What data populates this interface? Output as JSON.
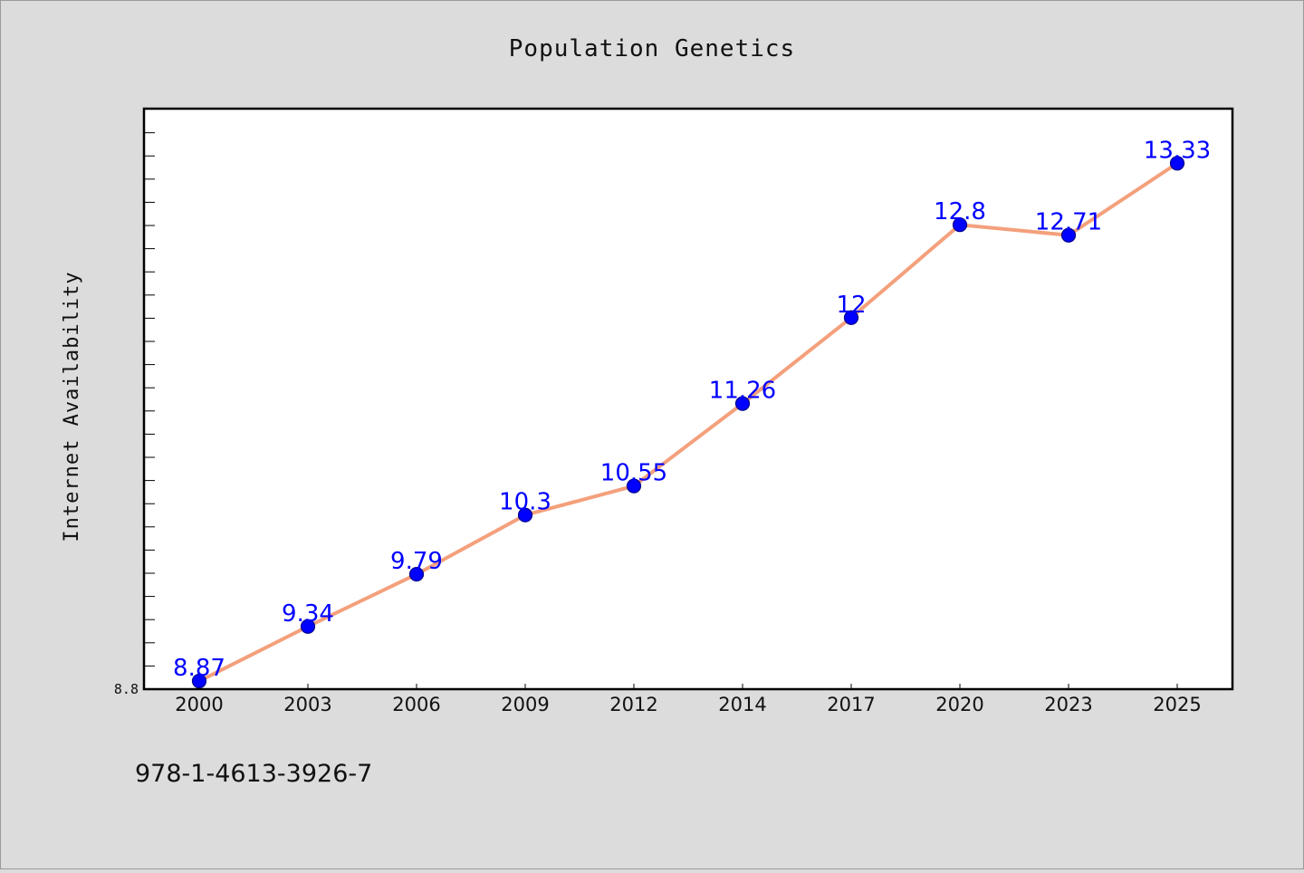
{
  "chart_data": {
    "type": "line",
    "title": "Population Genetics",
    "xlabel": "",
    "ylabel": "Internet Availability",
    "categories": [
      "2000",
      "2003",
      "2006",
      "2009",
      "2012",
      "2014",
      "2017",
      "2020",
      "2023",
      "2025"
    ],
    "series": [
      {
        "values": [
          8.87,
          9.34,
          9.79,
          10.3,
          10.55,
          11.26,
          12,
          12.8,
          12.71,
          13.33
        ],
        "labels": [
          "8.87",
          "9.34",
          "9.79",
          "10.3",
          "10.55",
          "11.26",
          "12",
          "12.8",
          "12.71",
          "13.33"
        ]
      }
    ],
    "ylim": [
      8.8,
      13.8
    ],
    "y_ticks": [
      "8.8"
    ],
    "grid": false,
    "legend": "none",
    "colors": {
      "line": "#f4a07c",
      "marker": "#0000ff",
      "label": "#0000ff",
      "plot_bg": "#ffffff",
      "page_bg": "#dcdcdc"
    }
  },
  "footer": {
    "code": "978-1-4613-3926-7"
  }
}
